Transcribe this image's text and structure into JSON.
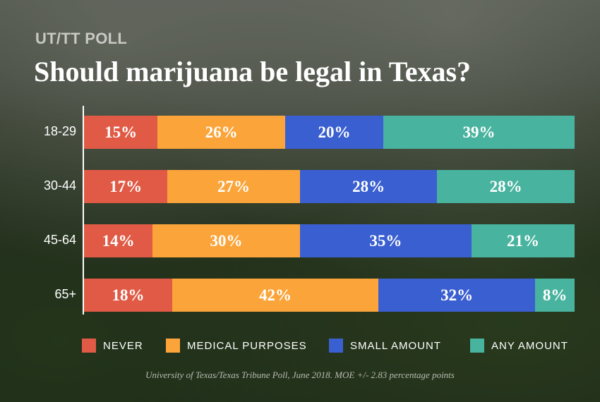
{
  "header": {
    "kicker": "UT/TT POLL",
    "title": "Should marijuana be legal in Texas?"
  },
  "source_note": "University of Texas/Texas Tribune Poll, June 2018. MOE +/- 2.83 percentage points",
  "colors": {
    "never": "#e05a45",
    "medical": "#fba43a",
    "small": "#3a5fd0",
    "any": "#48b39e"
  },
  "chart_data": {
    "type": "bar",
    "orientation": "horizontal",
    "stacked": true,
    "unit": "%",
    "categories": [
      "18-29",
      "30-44",
      "45-64",
      "65+"
    ],
    "series": [
      {
        "name": "NEVER",
        "color": "#e05a45",
        "values": [
          15,
          17,
          14,
          18
        ],
        "labels": [
          "15%",
          "17%",
          "14%",
          "18%"
        ]
      },
      {
        "name": "MEDICAL PURPOSES",
        "color": "#fba43a",
        "values": [
          26,
          27,
          30,
          42
        ],
        "labels": [
          "26%",
          "27%",
          "30%",
          "42%"
        ]
      },
      {
        "name": "SMALL AMOUNT",
        "color": "#3a5fd0",
        "values": [
          20,
          28,
          35,
          32
        ],
        "labels": [
          "20%",
          "28%",
          "35%",
          "32%"
        ]
      },
      {
        "name": "ANY AMOUNT",
        "color": "#48b39e",
        "values": [
          39,
          28,
          21,
          8
        ],
        "labels": [
          "39%",
          "28%",
          "21%",
          "8%"
        ]
      }
    ],
    "legend_position": "bottom",
    "grid": false,
    "title": "Should marijuana be legal in Texas?"
  }
}
